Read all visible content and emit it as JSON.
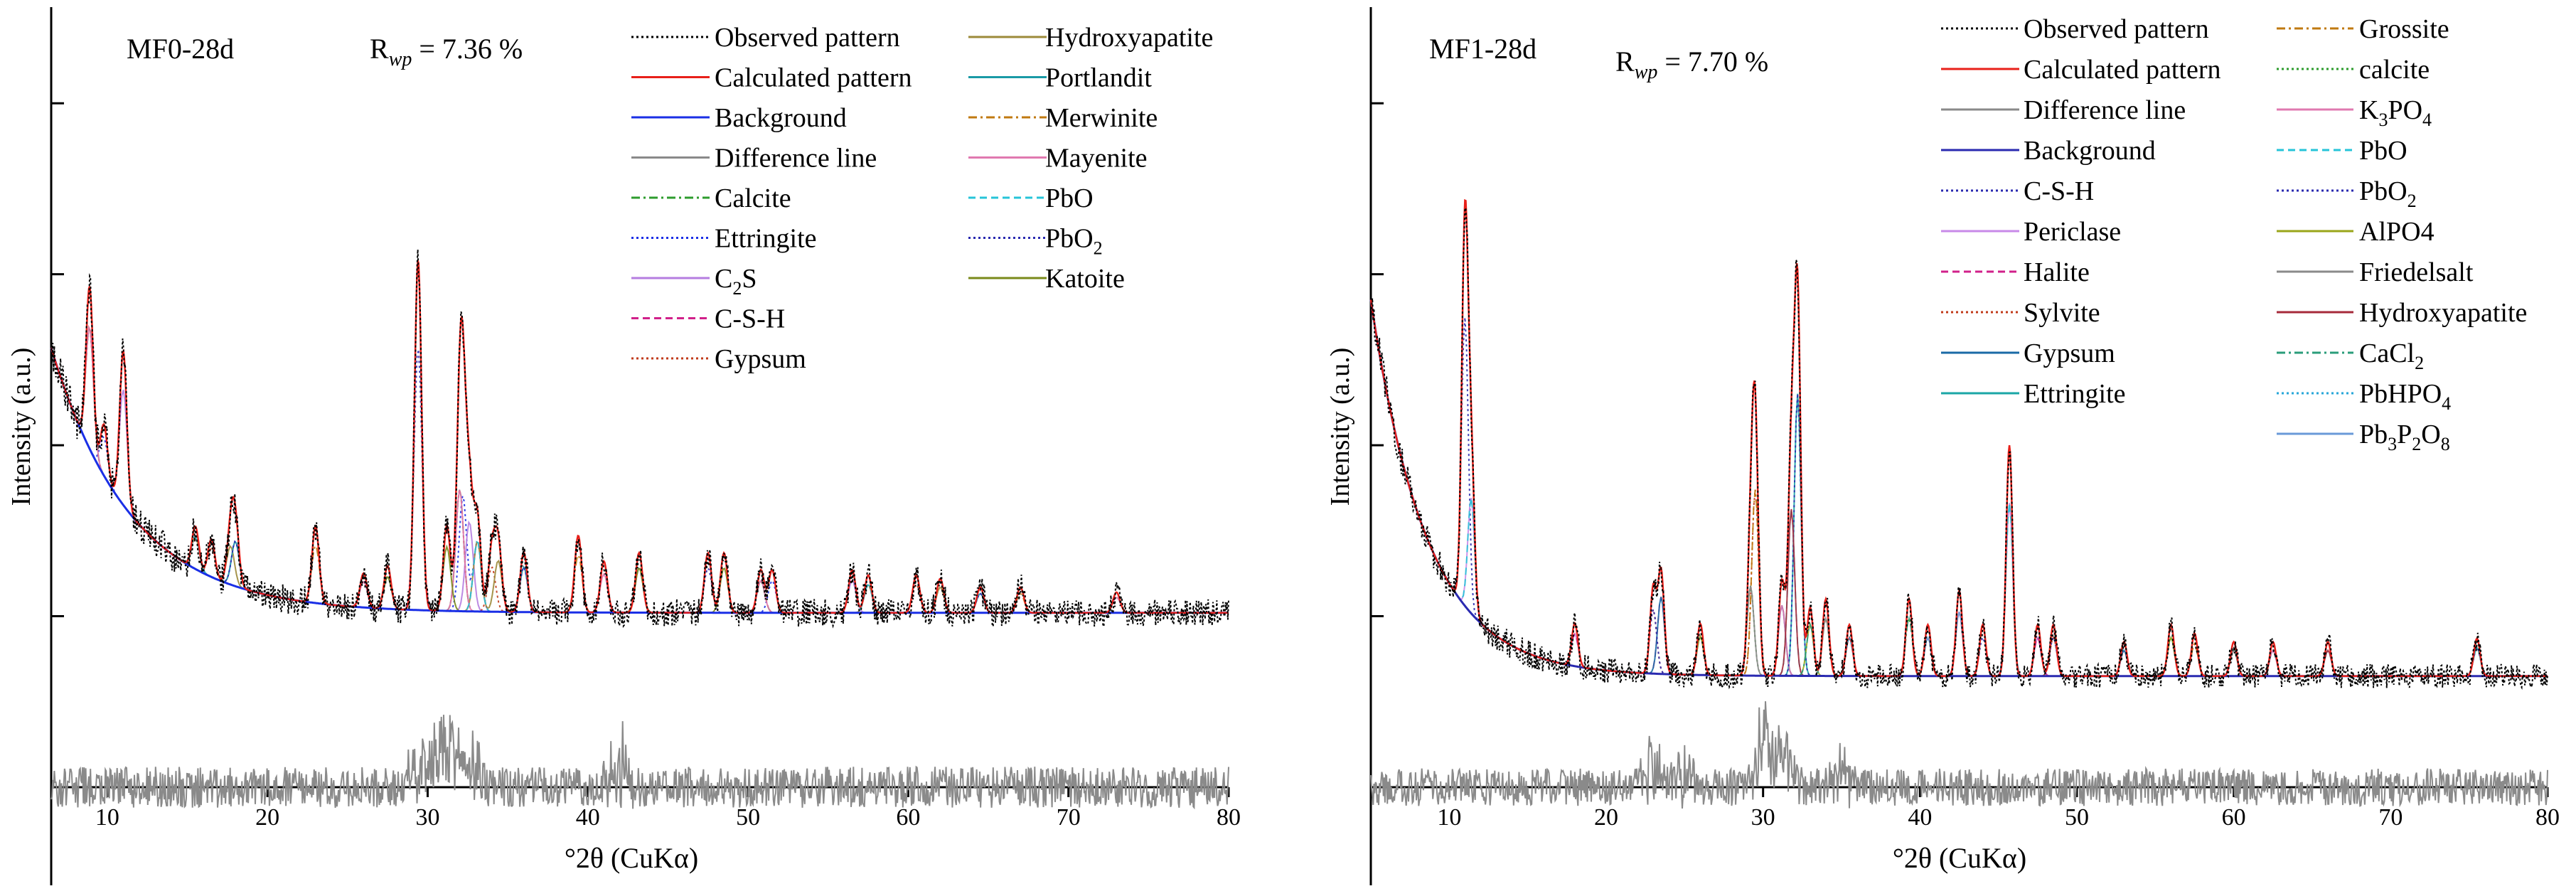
{
  "chart_data": [
    {
      "type": "line",
      "sample_label": "MF0-28d",
      "rwp_label": {
        "prefix": "R",
        "sub": "wp",
        "suffix": " = 7.36 %"
      },
      "xlabel": "°2θ (CuKα)",
      "ylabel": "Intensity (a.u.)",
      "xlim": [
        6.5,
        80
      ],
      "ylim": [
        -0.8,
        4.5
      ],
      "x_ticks": [
        10,
        20,
        30,
        40,
        50,
        60,
        70,
        80
      ],
      "x_tick_labels": [
        "10",
        "20",
        "30",
        "40",
        "50",
        "60",
        "70",
        "80"
      ],
      "y_tick_values": [
        1,
        2,
        3,
        4
      ],
      "y_tick_labels": [],
      "background": {
        "a": 1.02,
        "b": 1.55,
        "k": 0.2
      },
      "peaks": [
        [
          8.9,
          0.95
        ],
        [
          9.8,
          0.3
        ],
        [
          11.0,
          0.9
        ],
        [
          15.5,
          0.25
        ],
        [
          16.5,
          0.22
        ],
        [
          17.7,
          0.3
        ],
        [
          18.0,
          0.35
        ],
        [
          23.0,
          0.45
        ],
        [
          26.0,
          0.2
        ],
        [
          27.5,
          0.25
        ],
        [
          29.4,
          2.05
        ],
        [
          31.2,
          0.5
        ],
        [
          32.0,
          0.95
        ],
        [
          32.2,
          0.9
        ],
        [
          32.6,
          0.7
        ],
        [
          33.1,
          0.55
        ],
        [
          34.0,
          0.35
        ],
        [
          34.4,
          0.4
        ],
        [
          36.0,
          0.35
        ],
        [
          39.4,
          0.45
        ],
        [
          41.0,
          0.3
        ],
        [
          43.2,
          0.35
        ],
        [
          47.5,
          0.35
        ],
        [
          48.5,
          0.35
        ],
        [
          50.8,
          0.25
        ],
        [
          51.5,
          0.25
        ],
        [
          56.5,
          0.25
        ],
        [
          57.5,
          0.22
        ],
        [
          60.5,
          0.22
        ],
        [
          62.0,
          0.2
        ],
        [
          64.5,
          0.15
        ],
        [
          67.0,
          0.15
        ],
        [
          73.0,
          0.12
        ]
      ],
      "peak_width": 0.22,
      "noise": 0.08,
      "diff_noise": 0.12,
      "diff_bumps": [
        [
          30.8,
          0.35
        ],
        [
          31.6,
          0.25
        ],
        [
          33.0,
          0.2
        ],
        [
          42.0,
          0.3
        ],
        [
          29.4,
          0.2
        ]
      ],
      "series": [
        {
          "name": "Observed pattern",
          "color": "#000000",
          "dash": "dotted"
        },
        {
          "name": "Calculated pattern",
          "color": "#e8201a",
          "dash": "solid"
        },
        {
          "name": "Background",
          "color": "#1a2fe6",
          "dash": "solid"
        },
        {
          "name": "Difference line",
          "color": "#8a8a8a",
          "dash": "solid"
        },
        {
          "name": "Calcite",
          "color": "#2d9c2d",
          "dash": "dashdot"
        },
        {
          "name": "Ettringite",
          "color": "#1a2fe6",
          "dash": "dotted"
        },
        {
          "name": "C2S",
          "color": "#b57de0",
          "dash": "solid",
          "label_main": "C",
          "label_sub": "2",
          "label_tail": "S"
        },
        {
          "name": "C-S-H",
          "color": "#d1208a",
          "dash": "dashed"
        },
        {
          "name": "Gypsum",
          "color": "#c03a1a",
          "dash": "dotted"
        },
        {
          "name": "Hydroxyapatite",
          "color": "#9c8a3a",
          "dash": "solid"
        },
        {
          "name": "Portlandit",
          "color": "#1a9aa6",
          "dash": "solid"
        },
        {
          "name": "Merwinite",
          "color": "#c07a10",
          "dash": "dashdot"
        },
        {
          "name": "Mayenite",
          "color": "#e079b0",
          "dash": "solid"
        },
        {
          "name": "PbO",
          "color": "#26c4d8",
          "dash": "dashed"
        },
        {
          "name": "PbO2",
          "color": "#2a2ab0",
          "dash": "dotted",
          "label_main": "PbO",
          "label_sub": "2",
          "label_tail": ""
        },
        {
          "name": "Katoite",
          "color": "#7a8a1a",
          "dash": "solid"
        }
      ]
    },
    {
      "type": "line",
      "sample_label": "MF1-28d",
      "rwp_label": {
        "prefix": "R",
        "sub": "wp",
        "suffix": " = 7.70 %"
      },
      "xlabel": "°2θ (CuKα)",
      "ylabel": "Intensity (a.u.)",
      "xlim": [
        5,
        80
      ],
      "ylim": [
        -0.8,
        4.5
      ],
      "x_ticks": [
        10,
        20,
        30,
        40,
        50,
        60,
        70,
        80
      ],
      "x_tick_labels": [
        "10",
        "20",
        "30",
        "40",
        "50",
        "60",
        "70",
        "80"
      ],
      "y_tick_values": [
        1,
        2,
        3,
        4
      ],
      "y_tick_labels": [],
      "background": {
        "a": 0.65,
        "b": 2.2,
        "k": 0.28
      },
      "peaks": [
        [
          11.0,
          2.25
        ],
        [
          11.4,
          0.9
        ],
        [
          18.0,
          0.25
        ],
        [
          23.0,
          0.5
        ],
        [
          23.5,
          0.6
        ],
        [
          26.0,
          0.3
        ],
        [
          29.5,
          1.45
        ],
        [
          29.2,
          0.7
        ],
        [
          31.2,
          0.55
        ],
        [
          31.8,
          1.3
        ],
        [
          32.2,
          2.2
        ],
        [
          33.0,
          0.4
        ],
        [
          34.0,
          0.45
        ],
        [
          35.5,
          0.3
        ],
        [
          39.3,
          0.45
        ],
        [
          40.5,
          0.3
        ],
        [
          42.5,
          0.5
        ],
        [
          44.0,
          0.3
        ],
        [
          45.7,
          1.35
        ],
        [
          47.5,
          0.3
        ],
        [
          48.5,
          0.3
        ],
        [
          53.0,
          0.2
        ],
        [
          56.0,
          0.3
        ],
        [
          57.5,
          0.25
        ],
        [
          60.0,
          0.2
        ],
        [
          62.5,
          0.2
        ],
        [
          66.0,
          0.2
        ],
        [
          75.5,
          0.22
        ]
      ],
      "peak_width": 0.2,
      "noise": 0.07,
      "diff_noise": 0.11,
      "diff_bumps": [
        [
          23.0,
          0.28
        ],
        [
          30.0,
          0.45
        ],
        [
          31.2,
          0.3
        ],
        [
          25.0,
          0.18
        ],
        [
          35.0,
          0.15
        ]
      ],
      "series": [
        {
          "name": "Observed pattern",
          "color": "#000000",
          "dash": "dotted"
        },
        {
          "name": "Calculated pattern",
          "color": "#e8201a",
          "dash": "solid"
        },
        {
          "name": "Difference line",
          "color": "#8a8a8a",
          "dash": "solid"
        },
        {
          "name": "Background",
          "color": "#2a2ab0",
          "dash": "solid"
        },
        {
          "name": "C-S-H",
          "color": "#2a2ab0",
          "dash": "dotted"
        },
        {
          "name": "Periclase",
          "color": "#c88ae8",
          "dash": "solid"
        },
        {
          "name": "Halite",
          "color": "#d1208a",
          "dash": "dashed"
        },
        {
          "name": "Sylvite",
          "color": "#c03a1a",
          "dash": "dotted"
        },
        {
          "name": "Gypsum",
          "color": "#1a6aa6",
          "dash": "solid"
        },
        {
          "name": "Ettringite",
          "color": "#1aa6a6",
          "dash": "solid"
        },
        {
          "name": "Grossite",
          "color": "#c07a10",
          "dash": "dashdot"
        },
        {
          "name": "calcite",
          "color": "#2d9c2d",
          "dash": "dotted"
        },
        {
          "name": "K3PO4",
          "color": "#e079b0",
          "dash": "solid",
          "label_main": "K",
          "label_sub": "3",
          "label_tail": "PO",
          "label_sub2": "4"
        },
        {
          "name": "PbO",
          "color": "#26c4d8",
          "dash": "dashed"
        },
        {
          "name": "PbO2",
          "color": "#2a2ab0",
          "dash": "dotted",
          "label_main": "PbO",
          "label_sub": "2",
          "label_tail": ""
        },
        {
          "name": "AlPO4",
          "color": "#9aa61a",
          "dash": "solid"
        },
        {
          "name": "Friedelsalt",
          "color": "#8a8a8a",
          "dash": "solid"
        },
        {
          "name": "Hydroxyapatite",
          "color": "#a62a3a",
          "dash": "solid"
        },
        {
          "name": "CaCl2",
          "color": "#2a9c7a",
          "dash": "dashdot",
          "label_main": "CaCl",
          "label_sub": "2",
          "label_tail": ""
        },
        {
          "name": "PbHPO4",
          "color": "#26a6d8",
          "dash": "dotted",
          "label_main": "PbHPO",
          "label_sub": "4",
          "label_tail": ""
        },
        {
          "name": "Pb3P2O8",
          "color": "#6a9ad8",
          "dash": "solid",
          "label_main": "Pb",
          "label_sub": "3",
          "label_tail": "P",
          "label_sub2": "2",
          "label_tail2": "O",
          "label_sub3": "8"
        }
      ]
    }
  ]
}
